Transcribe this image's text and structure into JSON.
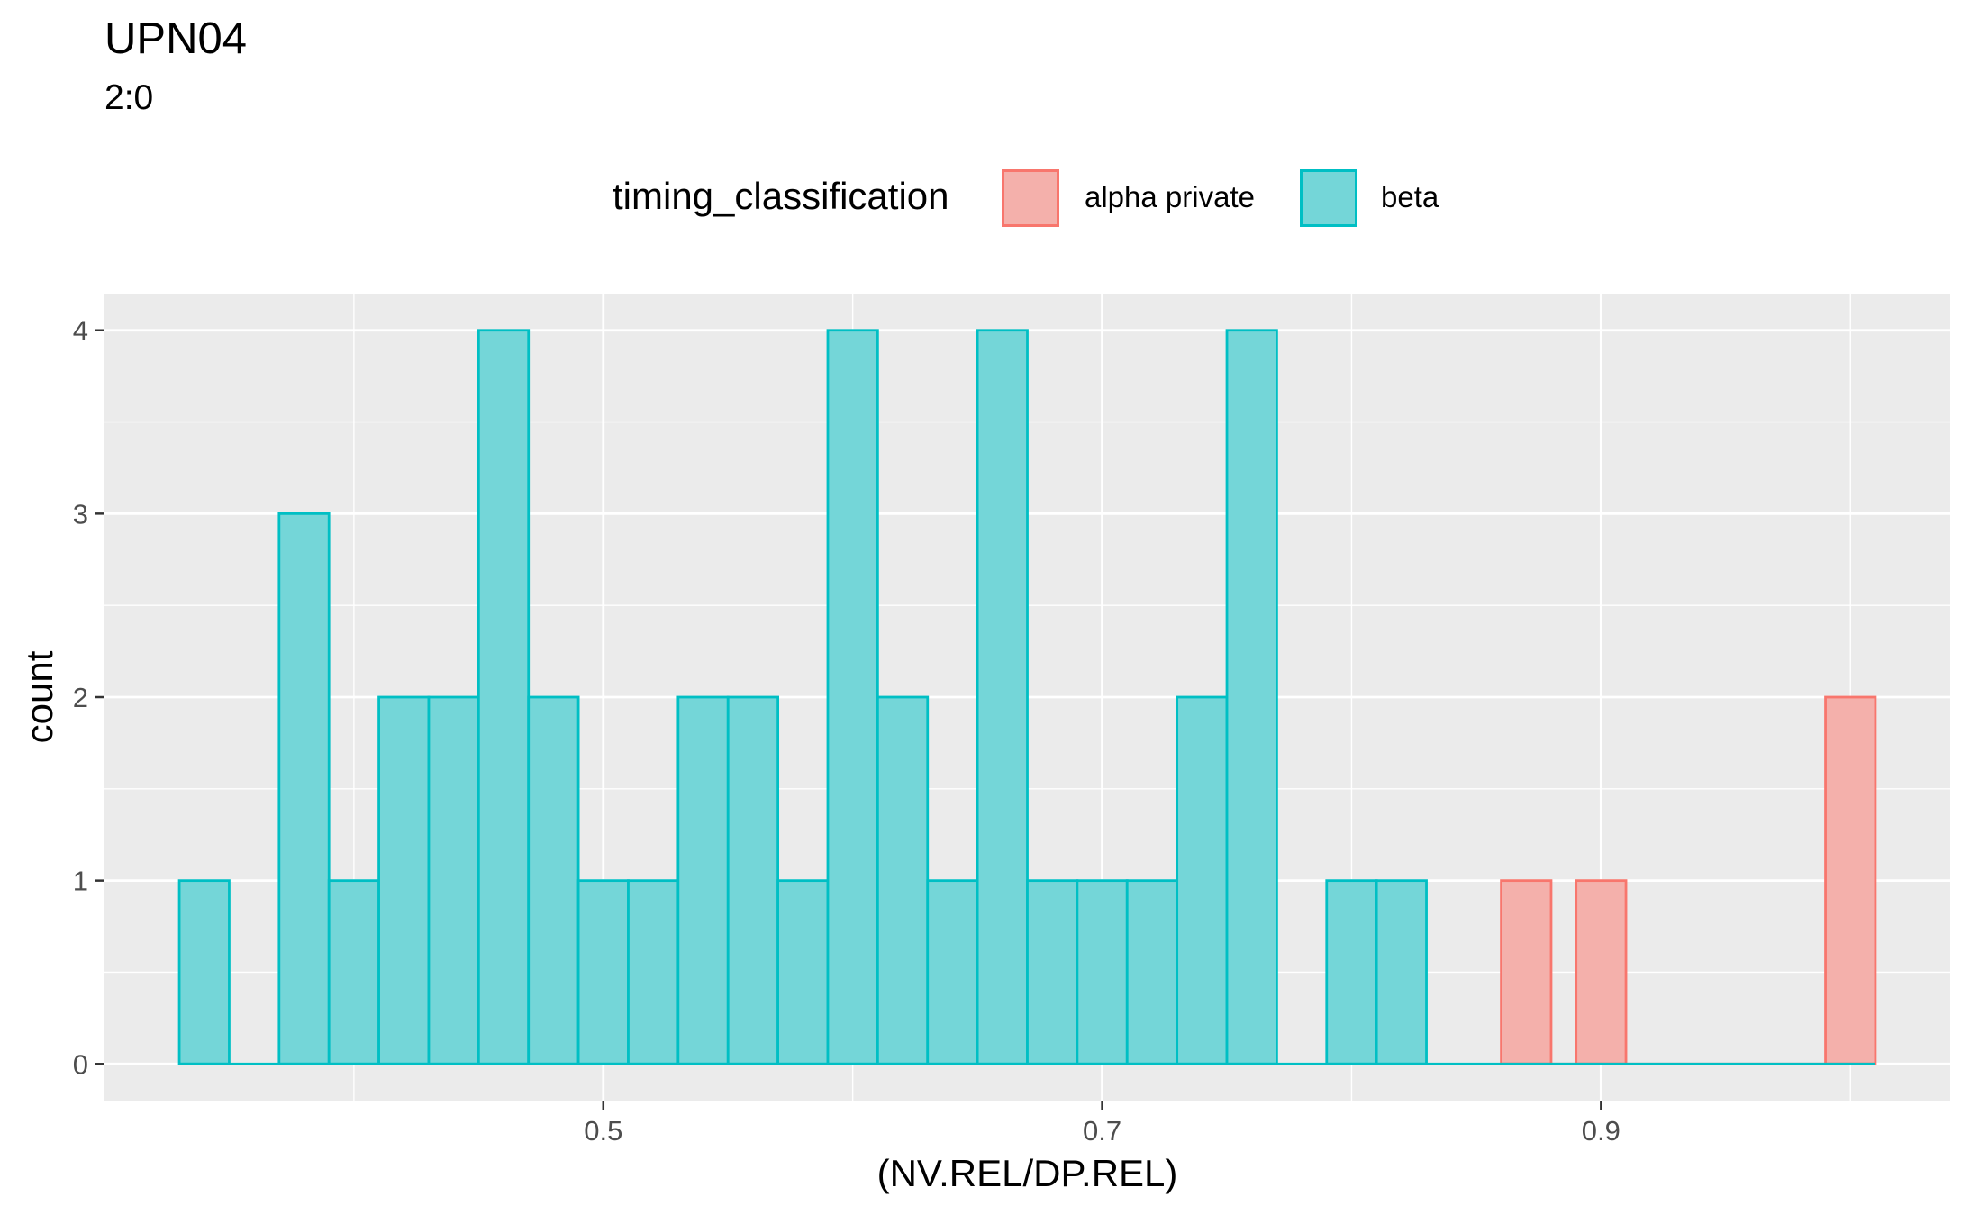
{
  "title": "UPN04",
  "subtitle": "2:0",
  "legend": {
    "title": "timing_classification",
    "items": [
      {
        "label": "alpha private",
        "fill": "#f4b0ab",
        "stroke": "#f8766d"
      },
      {
        "label": "beta",
        "fill": "#74d6d8",
        "stroke": "#00bfc4"
      }
    ]
  },
  "chart_data": {
    "type": "bar",
    "title": "UPN04",
    "subtitle": "2:0",
    "xlabel": "(NV.REL/DP.REL)",
    "ylabel": "count",
    "xlim": [
      0.3,
      1.04
    ],
    "ylim": [
      -0.2,
      4.2
    ],
    "x_ticks": [
      0.5,
      0.7,
      0.9
    ],
    "x_tick_labels": [
      "0.5",
      "0.7",
      "0.9"
    ],
    "y_ticks": [
      0,
      1,
      2,
      3,
      4
    ],
    "y_tick_labels": [
      "0",
      "1",
      "2",
      "3",
      "4"
    ],
    "grid": true,
    "legend_position": "top",
    "bin_width": 0.02,
    "series": [
      {
        "name": "beta",
        "fill": "#74d6d8",
        "stroke": "#00bfc4",
        "range": [
          0.33,
          1.01
        ],
        "bins": [
          {
            "start": 0.33,
            "count": 1
          },
          {
            "start": 0.37,
            "count": 3
          },
          {
            "start": 0.39,
            "count": 1
          },
          {
            "start": 0.41,
            "count": 2
          },
          {
            "start": 0.43,
            "count": 2
          },
          {
            "start": 0.45,
            "count": 4
          },
          {
            "start": 0.47,
            "count": 2
          },
          {
            "start": 0.49,
            "count": 1
          },
          {
            "start": 0.51,
            "count": 1
          },
          {
            "start": 0.53,
            "count": 2
          },
          {
            "start": 0.55,
            "count": 2
          },
          {
            "start": 0.57,
            "count": 1
          },
          {
            "start": 0.59,
            "count": 4
          },
          {
            "start": 0.61,
            "count": 2
          },
          {
            "start": 0.63,
            "count": 1
          },
          {
            "start": 0.65,
            "count": 4
          },
          {
            "start": 0.67,
            "count": 1
          },
          {
            "start": 0.69,
            "count": 1
          },
          {
            "start": 0.71,
            "count": 1
          },
          {
            "start": 0.73,
            "count": 2
          },
          {
            "start": 0.75,
            "count": 4
          },
          {
            "start": 0.79,
            "count": 1
          },
          {
            "start": 0.81,
            "count": 1
          }
        ]
      },
      {
        "name": "alpha private",
        "fill": "#f4b0ab",
        "stroke": "#f8766d",
        "range": [
          0.86,
          1.01
        ],
        "bins": [
          {
            "start": 0.86,
            "count": 1
          },
          {
            "start": 0.89,
            "count": 1
          },
          {
            "start": 0.99,
            "count": 2
          }
        ]
      }
    ]
  }
}
